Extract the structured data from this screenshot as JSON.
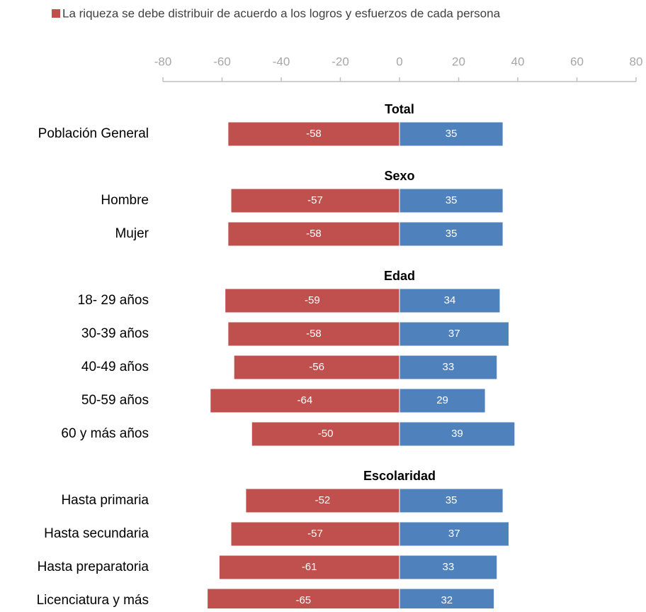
{
  "chart_data": {
    "type": "diverging-bar",
    "groups": [
      {
        "name": "Total",
        "categories": [
          "Población General"
        ]
      },
      {
        "name": "Sexo",
        "categories": [
          "Hombre",
          "Mujer"
        ]
      },
      {
        "name": "Edad",
        "categories": [
          "18- 29 años",
          "30-39 años",
          "40-49 años",
          "50-59 años",
          "60 y más años"
        ]
      },
      {
        "name": "Escolaridad",
        "categories": [
          "Hasta primaria",
          "Hasta secundaria",
          "Hasta preparatoria",
          "Licenciatura y más"
        ]
      }
    ],
    "series": [
      {
        "name": "La riqueza se debe distribuir de acuerdo a los logros y esfuerzos de cada persona",
        "color": "#c0504d",
        "values": [
          -58,
          -57,
          -58,
          -59,
          -58,
          -56,
          -64,
          -50,
          -52,
          -57,
          -61,
          -65
        ]
      },
      {
        "color": "#4f81bd",
        "values": [
          35,
          35,
          35,
          34,
          37,
          33,
          29,
          39,
          35,
          37,
          33,
          32
        ]
      }
    ],
    "xlim": [
      -80,
      80
    ],
    "xticks": [
      -80,
      -60,
      -40,
      -20,
      0,
      20,
      40,
      60,
      80
    ],
    "legend": "top"
  }
}
